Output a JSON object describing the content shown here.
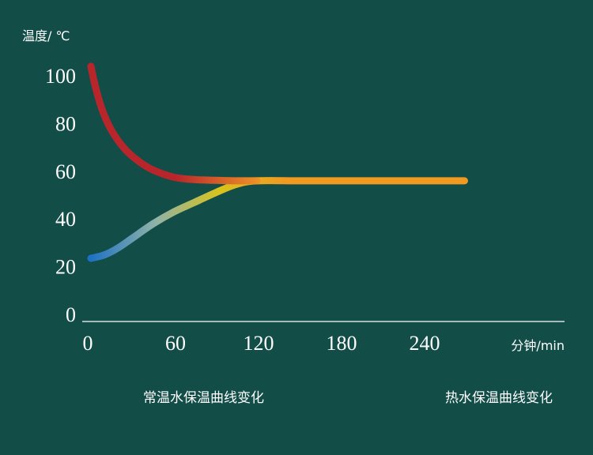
{
  "chart_data": {
    "type": "line",
    "ylabel": "温度/ ℃",
    "xlabel": "分钟/min",
    "xlim": [
      0,
      270
    ],
    "ylim": [
      0,
      110
    ],
    "x_ticks": [
      "0",
      "60",
      "120",
      "180",
      "240"
    ],
    "y_ticks": [
      "0",
      "20",
      "40",
      "60",
      "80",
      "100"
    ],
    "grid": false,
    "legend_position": "bottom",
    "series": [
      {
        "name": "常温水保温曲线变化",
        "gradient": [
          "#1e72c4",
          "#8fb3a8",
          "#d9c21c",
          "#f09a22"
        ],
        "x": [
          0,
          10,
          20,
          30,
          45,
          60,
          75,
          90,
          105,
          120,
          150,
          180,
          210,
          240,
          270
        ],
        "y": [
          23.5,
          25,
          28,
          32,
          38,
          43,
          47,
          51,
          54.5,
          56,
          56,
          56,
          56,
          56,
          56
        ]
      },
      {
        "name": "热水保温曲线变化",
        "gradient": [
          "#b8262c",
          "#b8262c",
          "#ef9526"
        ],
        "x": [
          0,
          3,
          8,
          15,
          25,
          35,
          45,
          60,
          75,
          90,
          105,
          120
        ],
        "y": [
          104,
          96,
          86,
          77,
          69,
          64,
          60.5,
          57.5,
          56.5,
          56.2,
          56,
          56
        ]
      }
    ]
  }
}
